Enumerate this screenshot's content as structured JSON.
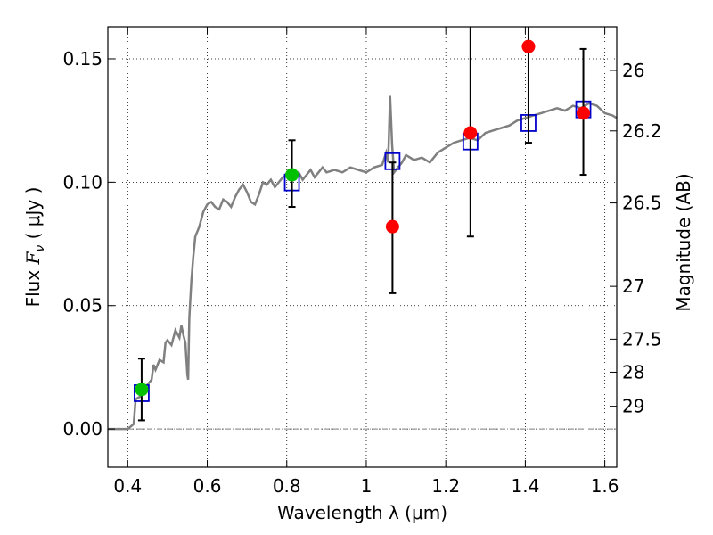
{
  "chart_data": {
    "type": "scatter",
    "xlabel": "Wavelength  λ (μm)",
    "ylabel": "Flux  F_ν  ( μJy )",
    "ylabel_parts": {
      "prefix": "Flux  ",
      "var": "F",
      "sub": "ν",
      "unit": "  ( μJy )"
    },
    "y2label": "Magnitude (AB)",
    "xlim": [
      0.35,
      1.63
    ],
    "ylim": [
      -0.0155,
      0.163
    ],
    "grid": true,
    "x_ticks": [
      0.4,
      0.6,
      0.8,
      1.0,
      1.2,
      1.4,
      1.6
    ],
    "x_tick_labels": [
      "0.4",
      "0.6",
      "0.8",
      "1",
      "1.2",
      "1.4",
      "1.6"
    ],
    "y_ticks": [
      0.0,
      0.05,
      0.1,
      0.15
    ],
    "y_tick_labels": [
      "0.00",
      "0.05",
      "0.10",
      "0.15"
    ],
    "y2_ticks": [
      {
        "label": "26",
        "flux": 0.1453
      },
      {
        "label": "26.2",
        "flux": 0.1208
      },
      {
        "label": "26.5",
        "flux": 0.0916
      },
      {
        "label": "27",
        "flux": 0.0578
      },
      {
        "label": "27.5",
        "flux": 0.0364
      },
      {
        "label": "28",
        "flux": 0.023
      },
      {
        "label": "29",
        "flux": 0.0092
      }
    ],
    "series": [
      {
        "type": "line",
        "color": "#808080",
        "x": [
          0.35,
          0.4,
          0.415,
          0.42,
          0.43,
          0.44,
          0.45,
          0.46,
          0.465,
          0.47,
          0.48,
          0.49,
          0.495,
          0.5,
          0.51,
          0.52,
          0.53,
          0.535,
          0.54,
          0.545,
          0.55,
          0.552,
          0.555,
          0.56,
          0.565,
          0.57,
          0.575,
          0.58,
          0.59,
          0.6,
          0.61,
          0.62,
          0.63,
          0.64,
          0.65,
          0.66,
          0.67,
          0.68,
          0.69,
          0.7,
          0.71,
          0.72,
          0.73,
          0.74,
          0.75,
          0.76,
          0.77,
          0.78,
          0.79,
          0.8,
          0.81,
          0.82,
          0.83,
          0.84,
          0.85,
          0.86,
          0.87,
          0.88,
          0.89,
          0.9,
          0.92,
          0.94,
          0.96,
          0.98,
          1.0,
          1.02,
          1.04,
          1.05,
          1.055,
          1.06,
          1.065,
          1.07,
          1.08,
          1.09,
          1.1,
          1.12,
          1.14,
          1.16,
          1.18,
          1.2,
          1.22,
          1.24,
          1.26,
          1.28,
          1.3,
          1.32,
          1.34,
          1.36,
          1.38,
          1.4,
          1.42,
          1.44,
          1.46,
          1.48,
          1.5,
          1.52,
          1.54,
          1.56,
          1.58,
          1.6,
          1.62,
          1.63
        ],
        "y": [
          0,
          0,
          0.002,
          0.012,
          0.013,
          0.016,
          0.018,
          0.02,
          0.026,
          0.024,
          0.028,
          0.027,
          0.035,
          0.036,
          0.034,
          0.04,
          0.037,
          0.042,
          0.038,
          0.035,
          0.022,
          0.02,
          0.045,
          0.06,
          0.07,
          0.078,
          0.08,
          0.082,
          0.088,
          0.091,
          0.092,
          0.09,
          0.089,
          0.093,
          0.092,
          0.09,
          0.094,
          0.097,
          0.099,
          0.096,
          0.092,
          0.091,
          0.095,
          0.1,
          0.099,
          0.101,
          0.098,
          0.1,
          0.102,
          0.103,
          0.105,
          0.102,
          0.104,
          0.101,
          0.103,
          0.105,
          0.102,
          0.104,
          0.106,
          0.104,
          0.105,
          0.104,
          0.106,
          0.105,
          0.104,
          0.106,
          0.107,
          0.112,
          0.108,
          0.135,
          0.115,
          0.104,
          0.106,
          0.108,
          0.111,
          0.109,
          0.11,
          0.108,
          0.112,
          0.114,
          0.116,
          0.117,
          0.118,
          0.117,
          0.12,
          0.121,
          0.122,
          0.123,
          0.125,
          0.126,
          0.127,
          0.128,
          0.129,
          0.13,
          0.129,
          0.131,
          0.13,
          0.132,
          0.131,
          0.128,
          0.127,
          0.126
        ]
      },
      {
        "type": "scatter",
        "marker": "square-open",
        "color": "#0000cc",
        "x": [
          0.435,
          0.813,
          1.066,
          1.262,
          1.408,
          1.546
        ],
        "y": [
          0.0145,
          0.0999,
          0.1085,
          0.1165,
          0.124,
          0.1295
        ]
      },
      {
        "type": "scatter",
        "marker": "circle",
        "color": "#00c000",
        "x": [
          0.435,
          0.813
        ],
        "y": [
          0.016,
          0.103
        ],
        "yerr_low": [
          0.0035,
          0.09
        ],
        "yerr_high": [
          0.0285,
          0.117
        ]
      },
      {
        "type": "scatter",
        "marker": "circle",
        "color": "#ff0000",
        "x": [
          1.066,
          1.262,
          1.408,
          1.546
        ],
        "y": [
          0.082,
          0.12,
          0.155,
          0.128
        ],
        "yerr_low": [
          0.055,
          0.078,
          0.116,
          0.103
        ],
        "yerr_high": [
          0.108,
          0.17,
          0.17,
          0.154
        ]
      }
    ],
    "annotations": [
      {
        "type": "hline",
        "y": 0.0,
        "style": "dashdot",
        "color": "#808080"
      }
    ]
  }
}
